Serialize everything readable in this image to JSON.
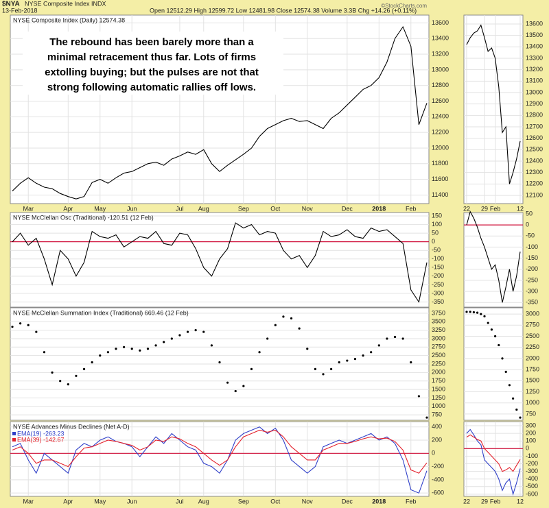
{
  "header": {
    "symbol": "$NYA",
    "name": "NYSE Composite Index INDX",
    "date": "13-Feb-2018",
    "quote": "Open 12512.29  High 12599.72  Low 12481.98  Close 12574.38  Volume 3.3B  Chg +14.26 (+0.11%)",
    "watermark": "©StockCharts.com"
  },
  "chart_data": [
    {
      "type": "line",
      "title": "NYSE Composite Index (Daily) 12574.38",
      "annotation": [
        "The rebound has been barely more than a",
        "minimal retracement thus far. Lots of firms",
        "extolling buying; but the pulses are not that",
        "strong following automatic rallies off lows."
      ],
      "categories": [
        null,
        null,
        "Mar",
        null,
        null,
        null,
        null,
        "Apr",
        null,
        null,
        null,
        "May",
        null,
        null,
        null,
        "Jun",
        null,
        null,
        null,
        null,
        null,
        "Jul",
        null,
        null,
        "Aug",
        null,
        null,
        null,
        null,
        "Sep",
        null,
        null,
        null,
        "Oct",
        null,
        null,
        null,
        "Nov",
        null,
        null,
        null,
        null,
        "Dec",
        null,
        null,
        null,
        "2018",
        null,
        null,
        null,
        "Feb",
        null,
        null
      ],
      "series": [
        {
          "name": "NYSE Composite Index",
          "color": "#000000",
          "values": [
            11450,
            11550,
            11620,
            11550,
            11500,
            11480,
            11420,
            11380,
            11350,
            11380,
            11560,
            11600,
            11550,
            11620,
            11680,
            11700,
            11750,
            11800,
            11820,
            11780,
            11860,
            11900,
            11950,
            11920,
            11980,
            11800,
            11700,
            11780,
            11850,
            11920,
            12000,
            12150,
            12250,
            12300,
            12350,
            12380,
            12340,
            12350,
            12300,
            12250,
            12380,
            12450,
            12550,
            12650,
            12750,
            12800,
            12900,
            13100,
            13400,
            13550,
            13300,
            12300,
            12574.38
          ]
        }
      ],
      "ylim": [
        11290,
        13700
      ],
      "yticks": [
        11400,
        11600,
        11800,
        12000,
        12200,
        12400,
        12600,
        12800,
        13000,
        13200,
        13400,
        13600
      ],
      "grid": true
    },
    {
      "type": "line",
      "title": "NYSE McClellan Osc (Traditional) -120.51 (12 Feb)",
      "series": [
        {
          "name": "McClellan Osc",
          "color": "#000000",
          "values": [
            0,
            50,
            -20,
            20,
            -100,
            -250,
            -50,
            -100,
            -200,
            -120,
            60,
            30,
            20,
            40,
            -30,
            0,
            30,
            20,
            60,
            -10,
            -20,
            50,
            40,
            -40,
            -150,
            -200,
            -100,
            -40,
            110,
            80,
            100,
            40,
            60,
            50,
            -50,
            -100,
            -80,
            -150,
            -80,
            60,
            30,
            40,
            70,
            30,
            20,
            80,
            60,
            70,
            30,
            -10,
            -280,
            -350,
            -120.51
          ]
        }
      ],
      "reference_line": 0,
      "reference_color": "#d0103a",
      "ylim": [
        -380,
        170
      ],
      "yticks": [
        150,
        100,
        50,
        0,
        -50,
        -100,
        -150,
        -200,
        -250,
        -300,
        -350
      ],
      "grid": true
    },
    {
      "type": "dot",
      "title": "NYSE McClellan Summation Index (Traditional) 669.46 (12 Feb)",
      "series": [
        {
          "name": "Summation Index",
          "color": "#000000",
          "values": [
            3350,
            3450,
            3400,
            3200,
            2600,
            2000,
            1750,
            1650,
            1900,
            2100,
            2300,
            2500,
            2600,
            2700,
            2750,
            2700,
            2650,
            2700,
            2800,
            2900,
            3000,
            3100,
            3200,
            3250,
            3200,
            2800,
            2300,
            1700,
            1450,
            1600,
            2100,
            2600,
            3000,
            3400,
            3650,
            3600,
            3300,
            2700,
            2100,
            1950,
            2100,
            2300,
            2350,
            2400,
            2500,
            2600,
            2800,
            3000,
            3050,
            3000,
            2300,
            1300,
            669.46
          ]
        }
      ],
      "ylim": [
        590,
        3910
      ],
      "yticks": [
        750,
        1000,
        1250,
        1500,
        1750,
        2000,
        2250,
        2500,
        2750,
        3000,
        3250,
        3500,
        3750
      ],
      "grid": true
    },
    {
      "type": "line",
      "title": "NYSE Advances Minus Declines (Net A-D)",
      "categories": [
        null,
        null,
        "Mar",
        null,
        null,
        null,
        null,
        "Apr",
        null,
        null,
        null,
        "May",
        null,
        null,
        null,
        "Jun",
        null,
        null,
        null,
        null,
        null,
        "Jul",
        null,
        null,
        "Aug",
        null,
        null,
        null,
        null,
        "Sep",
        null,
        null,
        null,
        "Oct",
        null,
        null,
        null,
        "Nov",
        null,
        null,
        null,
        null,
        "Dec",
        null,
        null,
        null,
        "2018",
        null,
        null,
        null,
        "Feb",
        null,
        null
      ],
      "series": [
        {
          "name": "EMA(19) -263.23",
          "color": "#2f3fc8",
          "values": [
            100,
            150,
            -100,
            -300,
            0,
            -100,
            -200,
            -300,
            50,
            150,
            100,
            200,
            250,
            180,
            150,
            100,
            -50,
            100,
            250,
            150,
            300,
            200,
            100,
            50,
            -150,
            -200,
            -300,
            -100,
            200,
            300,
            350,
            400,
            300,
            380,
            200,
            -100,
            -200,
            -300,
            -200,
            100,
            150,
            200,
            150,
            200,
            250,
            300,
            200,
            250,
            150,
            -100,
            -550,
            -600,
            -263.23
          ]
        },
        {
          "name": "EMA(39) -142.67",
          "color": "#e3202b",
          "values": [
            50,
            100,
            0,
            -150,
            -100,
            -100,
            -150,
            -200,
            -50,
            80,
            100,
            150,
            200,
            180,
            150,
            120,
            50,
            100,
            200,
            180,
            250,
            220,
            150,
            100,
            0,
            -100,
            -180,
            -100,
            100,
            250,
            300,
            350,
            320,
            350,
            250,
            100,
            0,
            -100,
            -100,
            50,
            100,
            150,
            150,
            180,
            220,
            250,
            220,
            230,
            180,
            50,
            -250,
            -300,
            -142.67
          ]
        }
      ],
      "reference_line": 0,
      "reference_color": "#d0103a",
      "ylim": [
        -650,
        480
      ],
      "yticks": [
        -600,
        -400,
        -200,
        0,
        200,
        400
      ],
      "grid": true
    },
    {
      "type": "line",
      "categories": [
        "22",
        null,
        null,
        null,
        null,
        "29",
        null,
        null,
        "Feb",
        null,
        null,
        null,
        null,
        null,
        null,
        "12"
      ],
      "series": [
        {
          "name": "NYSE Composite Index",
          "color": "#000000",
          "values": [
            13420,
            13480,
            13520,
            13540,
            13590,
            13480,
            13360,
            13390,
            13300,
            13050,
            12650,
            12700,
            12200,
            12300,
            12420,
            12574.38
          ]
        }
      ],
      "ylim": [
        12028,
        13678
      ],
      "yticks": [
        12100,
        12200,
        12300,
        12400,
        12500,
        12600,
        12700,
        12800,
        12900,
        13000,
        13100,
        13200,
        13300,
        13400,
        13500,
        13600
      ],
      "grid": true
    },
    {
      "type": "line",
      "series": [
        {
          "name": "McClellan Osc",
          "color": "#000000",
          "values": [
            0,
            60,
            30,
            -10,
            -60,
            -100,
            -150,
            -200,
            -180,
            -250,
            -350,
            -280,
            -200,
            -300,
            -230,
            -120.51
          ]
        }
      ],
      "reference_line": 0,
      "reference_color": "#d0103a",
      "ylim": [
        -371,
        56
      ],
      "yticks": [
        50,
        0,
        -50,
        -100,
        -150,
        -200,
        -250,
        -300,
        -350
      ],
      "grid": true
    },
    {
      "type": "dot",
      "series": [
        {
          "name": "Summation Index",
          "color": "#000000",
          "values": [
            3050,
            3050,
            3040,
            3030,
            3000,
            2950,
            2800,
            2650,
            2500,
            2300,
            2000,
            1700,
            1400,
            1100,
            850,
            669.46
          ]
        }
      ],
      "ylim": [
        610,
        3140
      ],
      "yticks": [
        750,
        1000,
        1250,
        1500,
        1750,
        2000,
        2250,
        2500,
        2750,
        3000
      ],
      "grid": true
    },
    {
      "type": "line",
      "categories": [
        "22",
        null,
        null,
        null,
        null,
        "29",
        null,
        null,
        "Feb",
        null,
        null,
        null,
        null,
        null,
        null,
        "12"
      ],
      "series": [
        {
          "name": "EMA(19)",
          "color": "#2f3fc8",
          "values": [
            200,
            250,
            180,
            100,
            50,
            -150,
            -200,
            -250,
            -300,
            -400,
            -550,
            -450,
            -400,
            -600,
            -450,
            -263.23
          ]
        },
        {
          "name": "EMA(39)",
          "color": "#e3202b",
          "values": [
            150,
            180,
            150,
            120,
            100,
            0,
            -50,
            -100,
            -150,
            -200,
            -300,
            -280,
            -250,
            -300,
            -220,
            -142.67
          ]
        }
      ],
      "reference_line": 0,
      "reference_color": "#d0103a",
      "ylim": [
        -628,
        354
      ],
      "yticks": [
        -600,
        -500,
        -400,
        -300,
        -200,
        -100,
        0,
        100,
        200,
        300
      ],
      "grid": true
    }
  ]
}
